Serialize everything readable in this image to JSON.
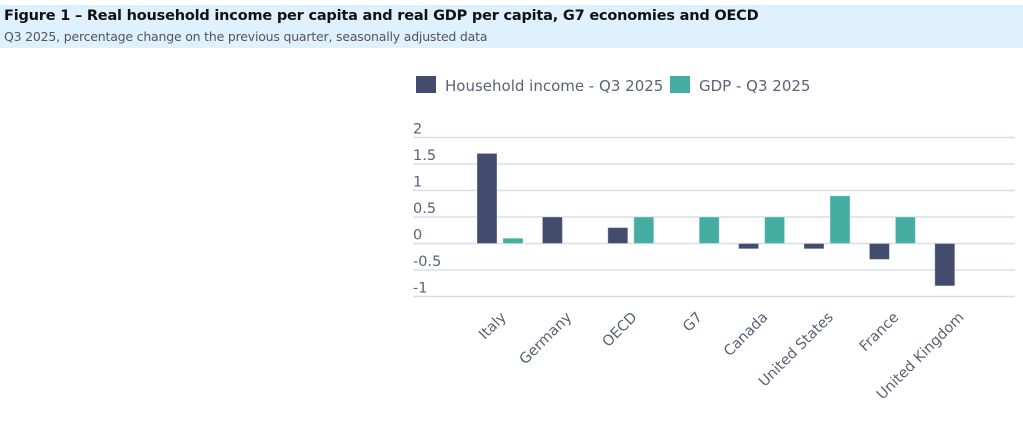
{
  "header": {
    "title": "Figure 1 – Real household income per capita and real GDP per capita, G7 economies and OECD",
    "subtitle": "Q3 2025, percentage change on the previous quarter, seasonally adjusted data",
    "background": "#dff0fe"
  },
  "chart_data": {
    "type": "bar",
    "title": "Figure 1 – Real household income per capita and real GDP per capita, G7 economies and OECD",
    "subtitle": "Q3 2025, percentage change on the previous quarter, seasonally adjusted data",
    "xlabel": "",
    "ylabel": "",
    "categories": [
      "Italy",
      "Germany",
      "OECD",
      "G7",
      "Canada",
      "United States",
      "France",
      "United Kingdom"
    ],
    "series": [
      {
        "name": "Household income - Q3 2025",
        "color": "#444c6e",
        "values": [
          1.7,
          0.5,
          0.3,
          null,
          -0.1,
          -0.1,
          -0.3,
          -0.8
        ]
      },
      {
        "name": "GDP - Q3 2025",
        "color": "#46ada3",
        "values": [
          0.1,
          null,
          0.5,
          0.5,
          0.5,
          0.9,
          0.5,
          null
        ]
      }
    ],
    "ylim": [
      -1,
      2
    ],
    "yticks": [
      2,
      1.5,
      1,
      0.5,
      0,
      -0.5,
      -1
    ],
    "ytick_labels": [
      "2",
      "1.5",
      "1",
      "0.5",
      "0",
      "-0.5",
      "-1"
    ],
    "grid": true,
    "legend": "top",
    "gridline_color": "#d8dde8"
  }
}
